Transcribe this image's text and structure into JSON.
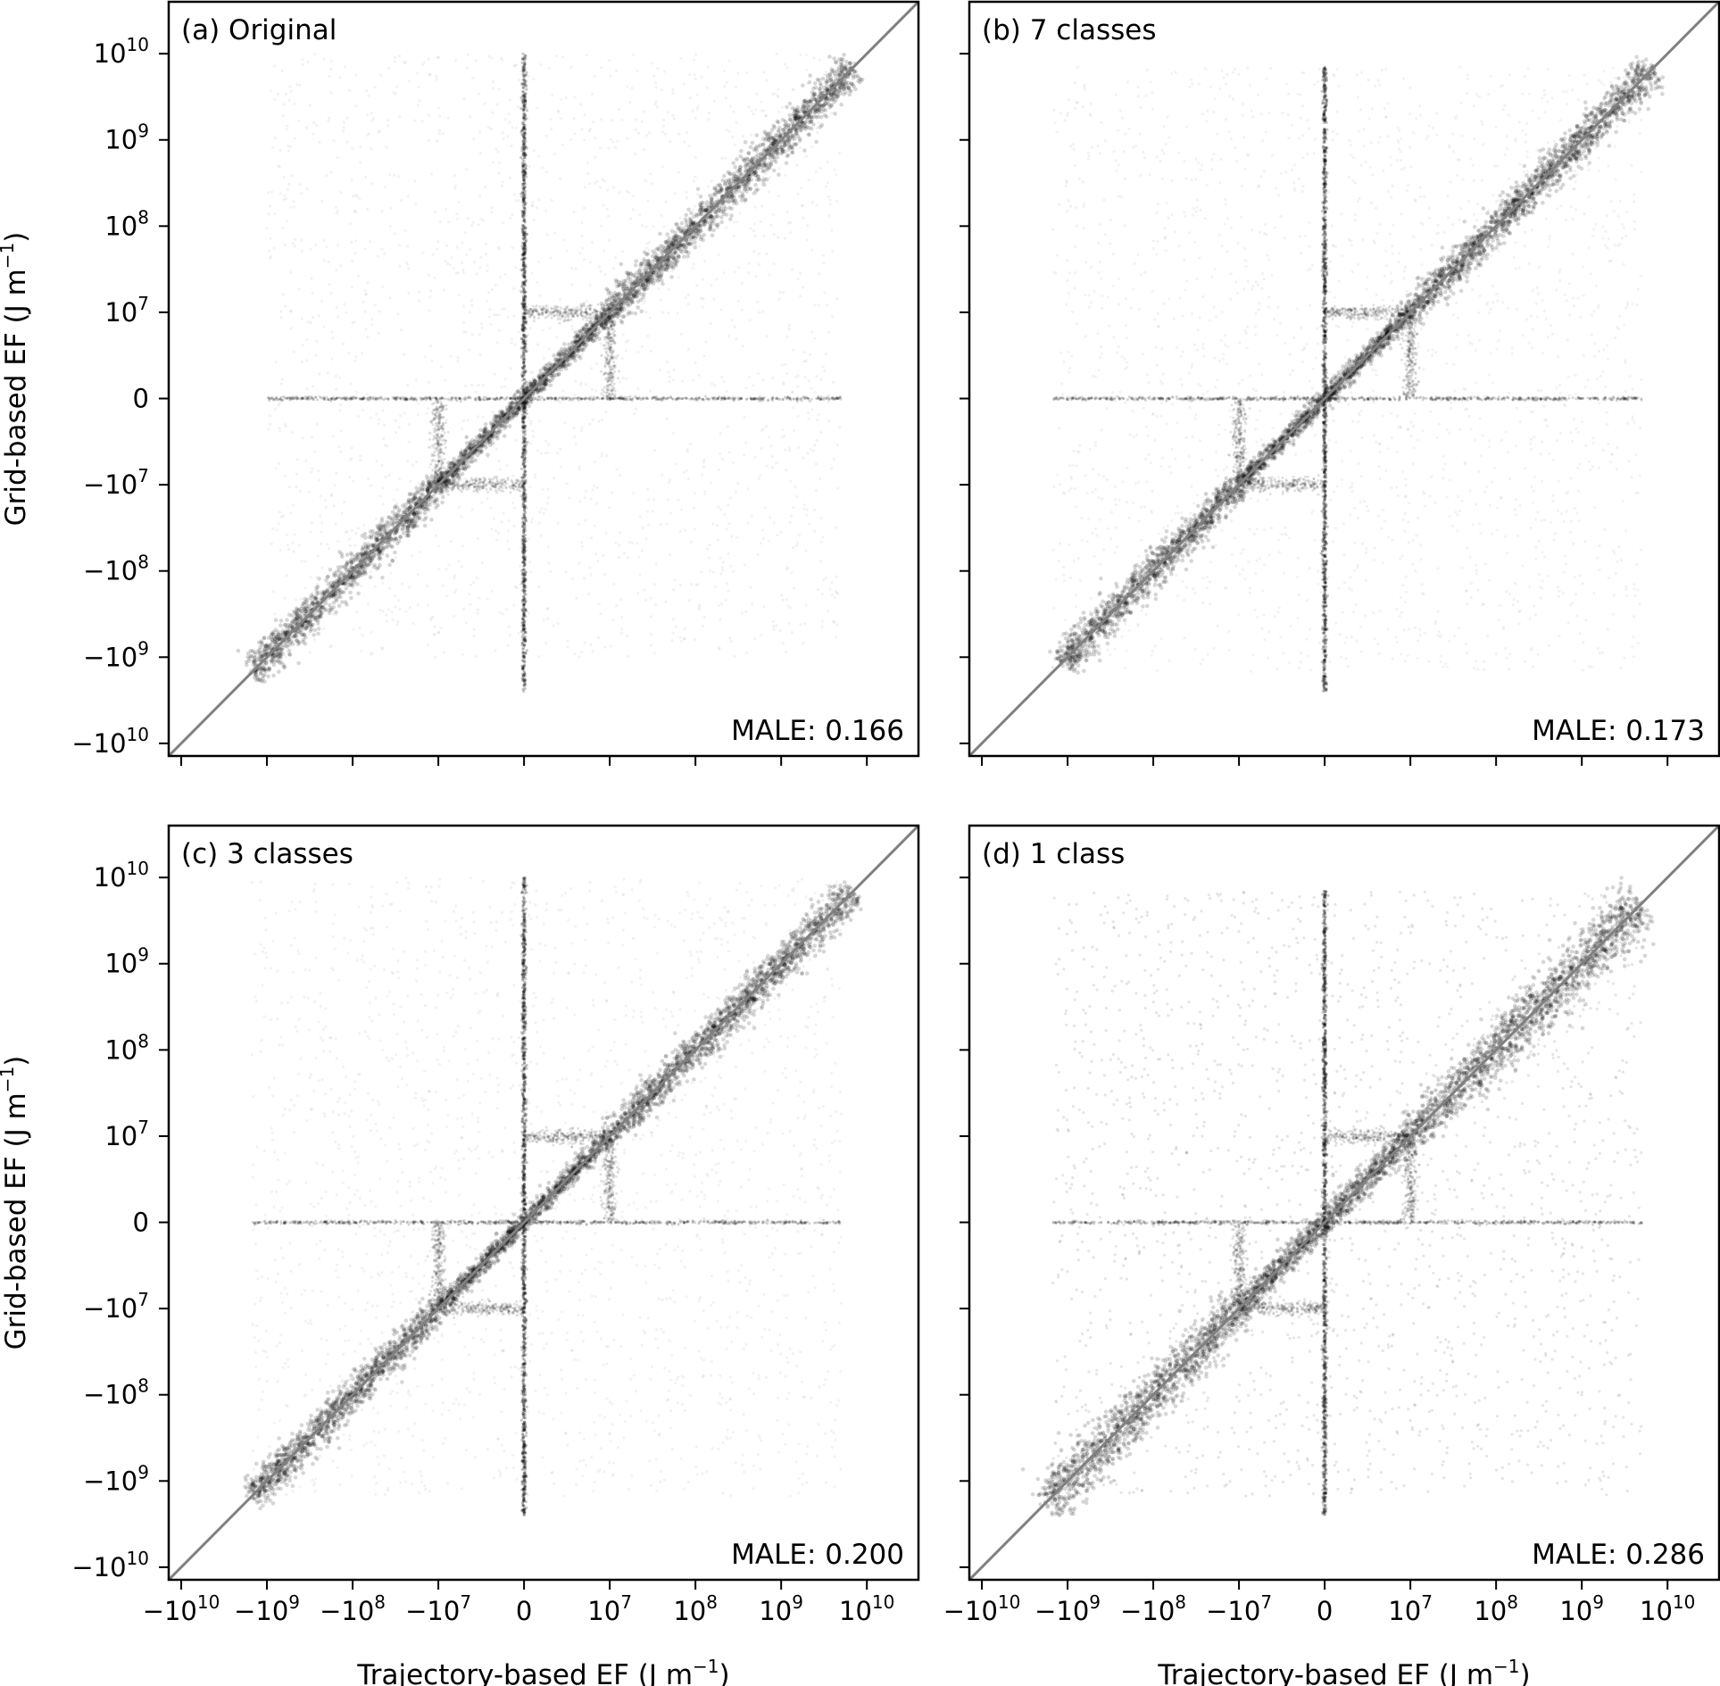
{
  "chart_data": {
    "type": "scatter",
    "layout": "2x2",
    "scale": "symlog",
    "linthresh": 10000000,
    "xlabel": {
      "main": "Trajectory-based EF (J m",
      "sup": "−1",
      "close": ")"
    },
    "ylabel": {
      "main": "Grid-based EF (J m",
      "sup": "−1",
      "close": ")"
    },
    "xlim": [
      -14000000000,
      40000000000
    ],
    "ylim": [
      -14000000000,
      40000000000
    ],
    "x_ticks": [
      {
        "value": -10000000000,
        "base": "−10",
        "exp": "10"
      },
      {
        "value": -1000000000,
        "base": "−10",
        "exp": "9"
      },
      {
        "value": -100000000,
        "base": "−10",
        "exp": "8"
      },
      {
        "value": -10000000,
        "base": "−10",
        "exp": "7"
      },
      {
        "value": 0,
        "base": "0",
        "exp": ""
      },
      {
        "value": 10000000,
        "base": "10",
        "exp": "7"
      },
      {
        "value": 100000000,
        "base": "10",
        "exp": "8"
      },
      {
        "value": 1000000000,
        "base": "10",
        "exp": "9"
      },
      {
        "value": 10000000000,
        "base": "10",
        "exp": "10"
      }
    ],
    "y_ticks": [
      {
        "value": 10000000000,
        "base": "10",
        "exp": "10"
      },
      {
        "value": 1000000000,
        "base": "10",
        "exp": "9"
      },
      {
        "value": 100000000,
        "base": "10",
        "exp": "8"
      },
      {
        "value": 10000000,
        "base": "10",
        "exp": "7"
      },
      {
        "value": 0,
        "base": "0",
        "exp": ""
      },
      {
        "value": -10000000,
        "base": "−10",
        "exp": "7"
      },
      {
        "value": -100000000,
        "base": "−10",
        "exp": "8"
      },
      {
        "value": -1000000000,
        "base": "−10",
        "exp": "9"
      },
      {
        "value": -10000000000,
        "base": "−10",
        "exp": "10"
      }
    ],
    "reference_line": "y = x",
    "grid": false,
    "marker_color": "#000000",
    "reference_line_color": "#808080",
    "panels": [
      {
        "label": "(a) Original",
        "stat": "MALE: 0.166",
        "diag_low": -1500000000,
        "diag_high": 7000000000,
        "vert_range": [
          -2500000000,
          10000000000
        ],
        "horiz_range": [
          -1000000000,
          5000000000
        ]
      },
      {
        "label": "(b) 7 classes",
        "stat": "MALE: 0.173",
        "diag_low": -1200000000,
        "diag_high": 7000000000,
        "vert_range": [
          -2500000000,
          7000000000
        ],
        "horiz_range": [
          -1500000000,
          5000000000
        ]
      },
      {
        "label": "(c) 3 classes",
        "stat": "MALE: 0.200",
        "diag_low": -1500000000,
        "diag_high": 7000000000,
        "vert_range": [
          -2500000000,
          10000000000
        ],
        "horiz_range": [
          -1500000000,
          5000000000
        ]
      },
      {
        "label": "(d) 1 class",
        "stat": "MALE: 0.286",
        "diag_low": -1800000000,
        "diag_high": 5000000000,
        "vert_range": [
          -2500000000,
          7000000000
        ],
        "horiz_range": [
          -1500000000,
          5000000000
        ]
      }
    ]
  }
}
